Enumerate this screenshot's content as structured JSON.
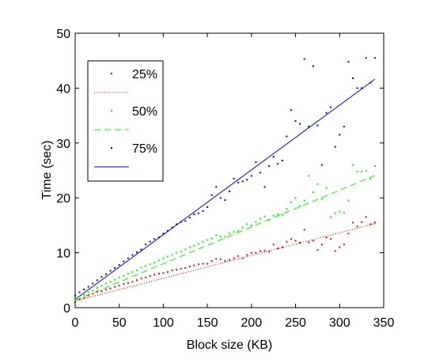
{
  "chart_data": {
    "type": "scatter",
    "xlabel": "Block size (KB)",
    "ylabel": "Time (sec)",
    "xlim": [
      0,
      350
    ],
    "ylim": [
      0,
      50
    ],
    "xticks": [
      0,
      50,
      100,
      150,
      200,
      250,
      300,
      350
    ],
    "yticks": [
      0,
      10,
      20,
      30,
      40,
      50
    ],
    "grid": false,
    "legend_position": "top-left",
    "series": [
      {
        "name": "25%",
        "color": "#ff0000",
        "line_style": "dotted",
        "fit": {
          "slope": 0.0415,
          "intercept": 1.2
        },
        "points": [
          [
            0,
            1.0
          ],
          [
            5,
            1.5
          ],
          [
            10,
            1.8
          ],
          [
            15,
            2.2
          ],
          [
            20,
            2.5
          ],
          [
            25,
            2.9
          ],
          [
            30,
            3.0
          ],
          [
            35,
            3.3
          ],
          [
            40,
            3.5
          ],
          [
            45,
            3.8
          ],
          [
            50,
            4.0
          ],
          [
            55,
            4.3
          ],
          [
            60,
            4.5
          ],
          [
            65,
            4.7
          ],
          [
            70,
            5.0
          ],
          [
            75,
            5.3
          ],
          [
            80,
            5.5
          ],
          [
            85,
            5.8
          ],
          [
            90,
            6.0
          ],
          [
            95,
            6.2
          ],
          [
            100,
            6.3
          ],
          [
            105,
            6.5
          ],
          [
            110,
            6.8
          ],
          [
            115,
            6.9
          ],
          [
            120,
            7.1
          ],
          [
            125,
            7.2
          ],
          [
            130,
            7.5
          ],
          [
            135,
            7.7
          ],
          [
            140,
            7.9
          ],
          [
            145,
            8.0
          ],
          [
            150,
            8.0
          ],
          [
            155,
            8.5
          ],
          [
            160,
            8.9
          ],
          [
            165,
            8.8
          ],
          [
            170,
            8.5
          ],
          [
            175,
            8.7
          ],
          [
            180,
            9.0
          ],
          [
            185,
            9.4
          ],
          [
            190,
            9.0
          ],
          [
            195,
            9.6
          ],
          [
            200,
            10.0
          ],
          [
            205,
            10.0
          ],
          [
            210,
            10.3
          ],
          [
            215,
            10.4
          ],
          [
            220,
            10.2
          ],
          [
            225,
            11.5
          ],
          [
            230,
            10.8
          ],
          [
            235,
            11.0
          ],
          [
            240,
            12.0
          ],
          [
            245,
            12.5
          ],
          [
            250,
            12.2
          ],
          [
            255,
            11.8
          ],
          [
            260,
            14.2
          ],
          [
            265,
            11.9
          ],
          [
            270,
            12.2
          ],
          [
            275,
            10.5
          ],
          [
            280,
            11.5
          ],
          [
            285,
            12.8
          ],
          [
            290,
            12.5
          ],
          [
            295,
            10.3
          ],
          [
            300,
            11.0
          ],
          [
            305,
            11.5
          ],
          [
            310,
            13.5
          ],
          [
            315,
            15.5
          ],
          [
            320,
            14.8
          ],
          [
            325,
            15.6
          ],
          [
            330,
            16.5
          ],
          [
            335,
            15.2
          ],
          [
            340,
            15.5
          ]
        ]
      },
      {
        "name": "50%",
        "color": "#00ff00",
        "line_style": "dashed",
        "fit": {
          "slope": 0.067,
          "intercept": 1.3
        },
        "points": [
          [
            0,
            1.5
          ],
          [
            5,
            2.0
          ],
          [
            10,
            2.3
          ],
          [
            15,
            2.8
          ],
          [
            20,
            3.1
          ],
          [
            25,
            3.6
          ],
          [
            30,
            4.0
          ],
          [
            35,
            4.4
          ],
          [
            40,
            4.7
          ],
          [
            45,
            5.1
          ],
          [
            50,
            5.5
          ],
          [
            55,
            5.8
          ],
          [
            60,
            6.2
          ],
          [
            65,
            6.5
          ],
          [
            70,
            6.8
          ],
          [
            75,
            7.3
          ],
          [
            80,
            7.6
          ],
          [
            85,
            7.9
          ],
          [
            90,
            8.2
          ],
          [
            95,
            8.6
          ],
          [
            100,
            9.0
          ],
          [
            105,
            9.3
          ],
          [
            110,
            9.6
          ],
          [
            115,
            10.0
          ],
          [
            120,
            10.2
          ],
          [
            125,
            10.6
          ],
          [
            130,
            11.0
          ],
          [
            135,
            11.3
          ],
          [
            140,
            11.6
          ],
          [
            145,
            12.0
          ],
          [
            150,
            12.3
          ],
          [
            155,
            12.6
          ],
          [
            160,
            13.2
          ],
          [
            165,
            13.0
          ],
          [
            170,
            12.9
          ],
          [
            175,
            13.5
          ],
          [
            180,
            13.8
          ],
          [
            185,
            14.0
          ],
          [
            190,
            14.6
          ],
          [
            195,
            15.2
          ],
          [
            200,
            15.0
          ],
          [
            205,
            15.6
          ],
          [
            210,
            16.2
          ],
          [
            215,
            16.6
          ],
          [
            220,
            16.0
          ],
          [
            225,
            16.8
          ],
          [
            230,
            17.0
          ],
          [
            235,
            16.9
          ],
          [
            240,
            18.0
          ],
          [
            245,
            19.2
          ],
          [
            250,
            20.0
          ],
          [
            255,
            18.5
          ],
          [
            260,
            19.5
          ],
          [
            265,
            24.0
          ],
          [
            270,
            21.0
          ],
          [
            275,
            22.5
          ],
          [
            280,
            19.8
          ],
          [
            285,
            21.8
          ],
          [
            290,
            16.5
          ],
          [
            295,
            17.2
          ],
          [
            300,
            17.5
          ],
          [
            305,
            17.3
          ],
          [
            310,
            19.5
          ],
          [
            315,
            26.0
          ],
          [
            320,
            24.8
          ],
          [
            325,
            24.8
          ],
          [
            330,
            24.9
          ],
          [
            335,
            23.5
          ],
          [
            340,
            25.8
          ]
        ]
      },
      {
        "name": "75%",
        "color": "#0000ff",
        "line_style": "solid",
        "fit": {
          "slope": 0.118,
          "intercept": 1.5
        },
        "points": [
          [
            0,
            2.2
          ],
          [
            5,
            2.8
          ],
          [
            10,
            3.3
          ],
          [
            15,
            3.8
          ],
          [
            20,
            4.4
          ],
          [
            25,
            5.0
          ],
          [
            30,
            5.6
          ],
          [
            35,
            6.1
          ],
          [
            40,
            6.7
          ],
          [
            45,
            7.2
          ],
          [
            50,
            7.8
          ],
          [
            55,
            8.4
          ],
          [
            60,
            9.0
          ],
          [
            65,
            9.6
          ],
          [
            70,
            10.1
          ],
          [
            75,
            10.6
          ],
          [
            80,
            11.5
          ],
          [
            85,
            12.0
          ],
          [
            90,
            12.5
          ],
          [
            95,
            12.8
          ],
          [
            100,
            13.5
          ],
          [
            105,
            14.0
          ],
          [
            110,
            14.6
          ],
          [
            115,
            15.2
          ],
          [
            120,
            15.6
          ],
          [
            125,
            15.8
          ],
          [
            130,
            16.4
          ],
          [
            135,
            17.0
          ],
          [
            140,
            17.2
          ],
          [
            145,
            17.6
          ],
          [
            150,
            18.3
          ],
          [
            155,
            20.5
          ],
          [
            160,
            22.0
          ],
          [
            165,
            20.0
          ],
          [
            170,
            19.6
          ],
          [
            175,
            21.2
          ],
          [
            180,
            23.5
          ],
          [
            185,
            22.8
          ],
          [
            190,
            23.0
          ],
          [
            195,
            23.3
          ],
          [
            200,
            24.0
          ],
          [
            205,
            26.5
          ],
          [
            210,
            24.6
          ],
          [
            215,
            22.0
          ],
          [
            220,
            25.8
          ],
          [
            225,
            27.5
          ],
          [
            230,
            26.2
          ],
          [
            235,
            26.8
          ],
          [
            240,
            31.2
          ],
          [
            245,
            36.0
          ],
          [
            250,
            34.0
          ],
          [
            255,
            33.5
          ],
          [
            260,
            45.3
          ],
          [
            265,
            33.0
          ],
          [
            270,
            44.0
          ],
          [
            275,
            33.2
          ],
          [
            280,
            26.0
          ],
          [
            285,
            35.5
          ],
          [
            290,
            36.5
          ],
          [
            295,
            29.3
          ],
          [
            300,
            31.5
          ],
          [
            305,
            33.0
          ],
          [
            310,
            44.8
          ],
          [
            315,
            41.8
          ],
          [
            320,
            40.0
          ],
          [
            325,
            40.0
          ],
          [
            330,
            45.5
          ],
          [
            335,
            41.0
          ],
          [
            340,
            45.5
          ]
        ]
      }
    ]
  }
}
